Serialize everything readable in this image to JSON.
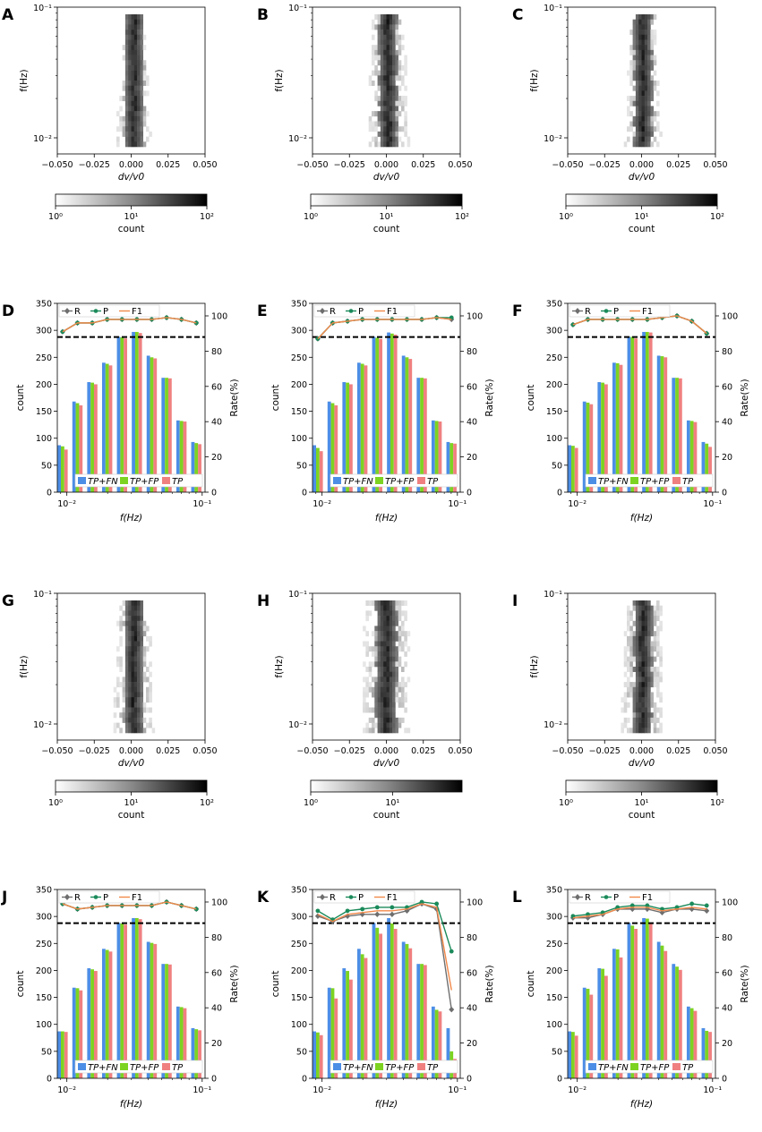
{
  "figure": {
    "note": "Grid of 12 panels: heatmaps (A,B,C,G,H,I) and bar+rate charts (D,E,F,J,K,L)"
  },
  "chart_data": [
    {
      "panel": "A",
      "type": "heatmap",
      "xlabel": "dv/v0",
      "ylabel": "f(Hz)",
      "xlim": [
        -0.05,
        0.05
      ],
      "xticks": [
        "−0.050",
        "−0.025",
        "0.000",
        "0.025",
        "0.050"
      ],
      "yticks": [
        "10⁻¹",
        "10⁻²"
      ],
      "colorbar": {
        "label": "count",
        "ticks": [
          "10⁰",
          "10¹",
          "10²"
        ]
      },
      "profile": {
        "center": 0.001,
        "width": 0.006,
        "spread_low": 0.012,
        "spread_high": 0.006
      }
    },
    {
      "panel": "B",
      "type": "heatmap",
      "xlabel": "dv/v0",
      "ylabel": "f(Hz)",
      "xlim": [
        -0.05,
        0.05
      ],
      "xticks": [
        "−0.050",
        "−0.025",
        "0.000",
        "0.025",
        "0.050"
      ],
      "yticks": [
        "10⁻¹",
        "10⁻²"
      ],
      "colorbar": {
        "label": "count",
        "ticks": [
          "10⁰",
          "10¹",
          "10²"
        ]
      },
      "profile": {
        "center": 0.0,
        "width": 0.006,
        "spread_low": 0.014,
        "spread_high": 0.01
      }
    },
    {
      "panel": "C",
      "type": "heatmap",
      "xlabel": "dv/v0",
      "ylabel": "f(Hz)",
      "xlim": [
        -0.05,
        0.05
      ],
      "xticks": [
        "−0.050",
        "−0.025",
        "0.000",
        "0.025",
        "0.050"
      ],
      "yticks": [
        "10⁻¹",
        "10⁻²"
      ],
      "colorbar": {
        "label": "count",
        "ticks": [
          "10⁰",
          "10¹",
          "10²"
        ]
      },
      "profile": {
        "center": 0.0,
        "width": 0.006,
        "spread_low": 0.012,
        "spread_high": 0.008
      }
    },
    {
      "panel": "D",
      "type": "bar",
      "xlabel": "f(Hz)",
      "ylabel": "count",
      "y2label": "Rate(%)",
      "ylim": [
        0,
        350
      ],
      "y2lim": [
        0,
        107.1
      ],
      "yticks": [
        0,
        50,
        100,
        150,
        200,
        250,
        300,
        350
      ],
      "y2ticks": [
        0,
        20,
        40,
        60,
        80,
        100
      ],
      "xticks": [
        "10⁻²",
        "10⁻¹"
      ],
      "threshold_rate": 88,
      "legend_bars": [
        "TP+FN",
        "TP+FP",
        "TP"
      ],
      "legend_lines": [
        "R",
        "P",
        "F1"
      ],
      "series": [
        {
          "name": "TP+FN",
          "values": [
            87,
            168,
            204,
            240,
            288,
            297,
            253,
            212,
            133,
            93
          ]
        },
        {
          "name": "TP+FP",
          "values": [
            85,
            165,
            203,
            238,
            287,
            297,
            250,
            212,
            132,
            91
          ]
        },
        {
          "name": "TP",
          "values": [
            79,
            161,
            200,
            235,
            285,
            295,
            248,
            211,
            131,
            89
          ]
        }
      ],
      "lines": [
        {
          "name": "R",
          "values": [
            91,
            96,
            96,
            98,
            98,
            98,
            98,
            99,
            98,
            96
          ]
        },
        {
          "name": "P",
          "values": [
            91,
            96,
            96,
            98,
            98,
            98,
            98,
            99,
            98,
            96
          ]
        },
        {
          "name": "F1",
          "values": [
            91,
            96,
            96,
            98,
            98,
            98,
            98,
            99,
            98,
            96
          ]
        }
      ]
    },
    {
      "panel": "E",
      "type": "bar",
      "xlabel": "f(Hz)",
      "ylabel": "count",
      "y2label": "Rate(%)",
      "ylim": [
        0,
        350
      ],
      "y2lim": [
        0,
        107.1
      ],
      "yticks": [
        0,
        50,
        100,
        150,
        200,
        250,
        300,
        350
      ],
      "y2ticks": [
        0,
        20,
        40,
        60,
        80,
        100
      ],
      "xticks": [
        "10⁻²",
        "10⁻¹"
      ],
      "threshold_rate": 88,
      "legend_bars": [
        "TP+FN",
        "TP+FP",
        "TP"
      ],
      "legend_lines": [
        "R",
        "P",
        "F1"
      ],
      "series": [
        {
          "name": "TP+FN",
          "values": [
            87,
            168,
            204,
            240,
            288,
            296,
            253,
            212,
            133,
            93
          ]
        },
        {
          "name": "TP+FP",
          "values": [
            82,
            165,
            203,
            238,
            286,
            294,
            250,
            212,
            132,
            91
          ]
        },
        {
          "name": "TP",
          "values": [
            76,
            161,
            200,
            235,
            284,
            292,
            247,
            211,
            131,
            90
          ]
        }
      ],
      "lines": [
        {
          "name": "R",
          "values": [
            87,
            96,
            97,
            98,
            98,
            98,
            98,
            98,
            99,
            98
          ]
        },
        {
          "name": "P",
          "values": [
            87,
            96,
            97,
            98,
            98,
            98,
            98,
            98,
            99,
            99
          ]
        },
        {
          "name": "F1",
          "values": [
            87,
            96,
            97,
            98,
            98,
            98,
            98,
            98,
            99,
            98
          ]
        }
      ]
    },
    {
      "panel": "F",
      "type": "bar",
      "xlabel": "f(Hz)",
      "ylabel": "count",
      "y2label": "Rate(%)",
      "ylim": [
        0,
        350
      ],
      "y2lim": [
        0,
        107.1
      ],
      "yticks": [
        0,
        50,
        100,
        150,
        200,
        250,
        300,
        350
      ],
      "y2ticks": [
        0,
        20,
        40,
        60,
        80,
        100
      ],
      "xticks": [
        "10⁻²",
        "10⁻¹"
      ],
      "threshold_rate": 88,
      "legend_bars": [
        "TP+FN",
        "TP+FP",
        "TP"
      ],
      "legend_lines": [
        "R",
        "P",
        "F1"
      ],
      "series": [
        {
          "name": "TP+FN",
          "values": [
            87,
            168,
            204,
            240,
            288,
            297,
            253,
            212,
            133,
            93
          ]
        },
        {
          "name": "TP+FP",
          "values": [
            86,
            166,
            203,
            239,
            288,
            297,
            252,
            212,
            132,
            90
          ]
        },
        {
          "name": "TP",
          "values": [
            82,
            163,
            200,
            236,
            285,
            296,
            250,
            211,
            130,
            84
          ]
        }
      ],
      "lines": [
        {
          "name": "R",
          "values": [
            95,
            98,
            98,
            98,
            98,
            98,
            99,
            100,
            97,
            90
          ]
        },
        {
          "name": "P",
          "values": [
            95,
            98,
            98,
            98,
            98,
            98,
            99,
            100,
            97,
            90
          ]
        },
        {
          "name": "F1",
          "values": [
            95,
            98,
            98,
            98,
            98,
            98,
            99,
            100,
            97,
            90
          ]
        }
      ]
    },
    {
      "panel": "G",
      "type": "heatmap",
      "xlabel": "dv/v0",
      "ylabel": "f(Hz)",
      "xlim": [
        -0.05,
        0.05
      ],
      "xticks": [
        "−0.050",
        "−0.025",
        "0.000",
        "0.025",
        "0.050"
      ],
      "yticks": [
        "10⁻¹",
        "10⁻²"
      ],
      "colorbar": {
        "label": "count",
        "ticks": [
          "10⁰",
          "10¹",
          "10²"
        ]
      },
      "profile": {
        "center": 0.001,
        "width": 0.006,
        "spread_low": 0.014,
        "spread_high": 0.01
      }
    },
    {
      "panel": "H",
      "type": "heatmap",
      "xlabel": "dv/v0",
      "ylabel": "f(Hz)",
      "xlim": [
        -0.05,
        0.05
      ],
      "xticks": [
        "−0.050",
        "−0.025",
        "0.000",
        "0.025",
        "0.050"
      ],
      "yticks": [
        "10⁻¹",
        "10⁻²"
      ],
      "colorbar": {
        "label": "count",
        "ticks": [
          "10⁰",
          "10¹"
        ]
      },
      "profile": {
        "center": -0.001,
        "width": 0.007,
        "spread_low": 0.016,
        "spread_high": 0.014
      }
    },
    {
      "panel": "I",
      "type": "heatmap",
      "xlabel": "dv/v0",
      "ylabel": "f(Hz)",
      "xlim": [
        -0.05,
        0.05
      ],
      "xticks": [
        "−0.050",
        "−0.025",
        "0.000",
        "0.025",
        "0.050"
      ],
      "yticks": [
        "10⁻¹",
        "10⁻²"
      ],
      "colorbar": {
        "label": "count",
        "ticks": [
          "10⁰",
          "10¹",
          "10²"
        ]
      },
      "profile": {
        "center": 0.0,
        "width": 0.006,
        "spread_low": 0.014,
        "spread_high": 0.012
      }
    },
    {
      "panel": "J",
      "type": "bar",
      "xlabel": "f(Hz)",
      "ylabel": "count",
      "y2label": "Rate(%)",
      "ylim": [
        0,
        350
      ],
      "y2lim": [
        0,
        107.1
      ],
      "yticks": [
        0,
        50,
        100,
        150,
        200,
        250,
        300,
        350
      ],
      "y2ticks": [
        0,
        20,
        40,
        60,
        80,
        100
      ],
      "xticks": [
        "10⁻²",
        "10⁻¹"
      ],
      "threshold_rate": 88,
      "legend_bars": [
        "TP+FN",
        "TP+FP",
        "TP"
      ],
      "legend_lines": [
        "R",
        "P",
        "F1"
      ],
      "series": [
        {
          "name": "TP+FN",
          "values": [
            87,
            168,
            204,
            240,
            288,
            297,
            253,
            212,
            133,
            93
          ]
        },
        {
          "name": "TP+FP",
          "values": [
            87,
            167,
            202,
            238,
            287,
            297,
            251,
            212,
            132,
            91
          ]
        },
        {
          "name": "TP",
          "values": [
            86,
            163,
            199,
            235,
            285,
            295,
            249,
            211,
            130,
            89
          ]
        }
      ],
      "lines": [
        {
          "name": "R",
          "values": [
            99,
            96,
            97,
            98,
            98,
            98,
            98,
            100,
            98,
            96
          ]
        },
        {
          "name": "P",
          "values": [
            99,
            96,
            97,
            98,
            98,
            98,
            98,
            100,
            98,
            96
          ]
        },
        {
          "name": "F1",
          "values": [
            99,
            96,
            97,
            98,
            98,
            98,
            98,
            100,
            98,
            96
          ]
        }
      ]
    },
    {
      "panel": "K",
      "type": "bar",
      "xlabel": "f(Hz)",
      "ylabel": "count",
      "y2label": "Rate(%)",
      "ylim": [
        0,
        350
      ],
      "y2lim": [
        0,
        107.1
      ],
      "yticks": [
        0,
        50,
        100,
        150,
        200,
        250,
        300,
        350
      ],
      "y2ticks": [
        0,
        20,
        40,
        60,
        80,
        100
      ],
      "xticks": [
        "10⁻²",
        "10⁻¹"
      ],
      "threshold_rate": 88,
      "legend_bars": [
        "TP+FN",
        "TP+FP",
        "TP"
      ],
      "legend_lines": [
        "R",
        "P",
        "F1"
      ],
      "series": [
        {
          "name": "TP+FN",
          "values": [
            87,
            168,
            204,
            240,
            288,
            297,
            253,
            212,
            133,
            93
          ]
        },
        {
          "name": "TP+FP",
          "values": [
            85,
            167,
            199,
            230,
            279,
            287,
            249,
            212,
            127,
            50
          ]
        },
        {
          "name": "TP",
          "values": [
            80,
            148,
            183,
            223,
            268,
            277,
            241,
            210,
            124,
            36
          ]
        }
      ],
      "lines": [
        {
          "name": "R",
          "values": [
            92,
            89,
            92,
            93,
            93,
            93,
            95,
            99,
            96,
            39
          ]
        },
        {
          "name": "P",
          "values": [
            95,
            90,
            95,
            96,
            97,
            97,
            97,
            100,
            99,
            72
          ]
        },
        {
          "name": "F1",
          "values": [
            93,
            89,
            93,
            94,
            95,
            95,
            96,
            99,
            97,
            50
          ]
        }
      ]
    },
    {
      "panel": "L",
      "type": "bar",
      "xlabel": "f(Hz)",
      "ylabel": "count",
      "y2label": "Rate(%)",
      "ylim": [
        0,
        350
      ],
      "y2lim": [
        0,
        107.1
      ],
      "yticks": [
        0,
        50,
        100,
        150,
        200,
        250,
        300,
        350
      ],
      "y2ticks": [
        0,
        20,
        40,
        60,
        80,
        100
      ],
      "xticks": [
        "10⁻²",
        "10⁻¹"
      ],
      "threshold_rate": 88,
      "legend_bars": [
        "TP+FN",
        "TP+FP",
        "TP"
      ],
      "legend_lines": [
        "R",
        "P",
        "F1"
      ],
      "series": [
        {
          "name": "TP+FN",
          "values": [
            87,
            168,
            204,
            240,
            288,
            297,
            253,
            212,
            133,
            93
          ]
        },
        {
          "name": "TP+FP",
          "values": [
            86,
            166,
            203,
            239,
            283,
            296,
            246,
            207,
            130,
            88
          ]
        },
        {
          "name": "TP",
          "values": [
            79,
            155,
            190,
            224,
            277,
            288,
            236,
            201,
            125,
            86
          ]
        }
      ],
      "lines": [
        {
          "name": "R",
          "values": [
            91,
            91,
            93,
            96,
            96,
            96,
            94,
            96,
            96,
            95
          ]
        },
        {
          "name": "P",
          "values": [
            92,
            93,
            94,
            97,
            98,
            98,
            96,
            97,
            99,
            98
          ]
        },
        {
          "name": "F1",
          "values": [
            91,
            92,
            93,
            96,
            97,
            97,
            95,
            96,
            97,
            96
          ]
        }
      ]
    }
  ],
  "colors": {
    "bar_tpfn": "#4c8ee6",
    "bar_tpfp": "#7dd321",
    "bar_tp": "#f08080",
    "line_r": "#6e6e6e",
    "line_p": "#1b8a5a",
    "line_f1": "#f2894a",
    "threshold": "#000000"
  }
}
